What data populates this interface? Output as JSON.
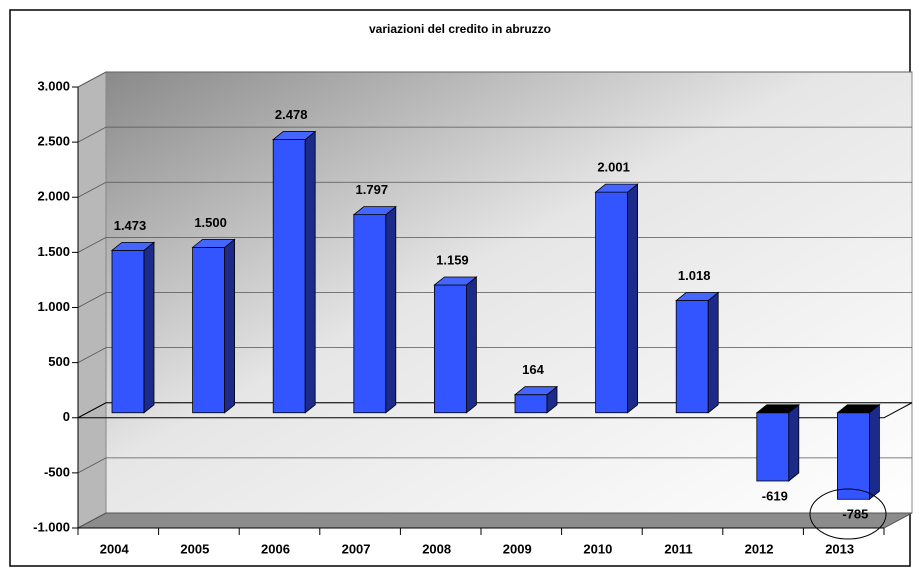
{
  "chart_data": {
    "type": "bar3d",
    "title": "variazioni del credito in abruzzo",
    "categories": [
      "2004",
      "2005",
      "2006",
      "2007",
      "2008",
      "2009",
      "2010",
      "2011",
      "2012",
      "2013"
    ],
    "values": [
      1473,
      1500,
      2478,
      1797,
      1159,
      164,
      2001,
      1018,
      -619,
      -785
    ],
    "value_labels": [
      "1.473",
      "1.500",
      "2.478",
      "1.797",
      "1.159",
      "164",
      "2.001",
      "1.018",
      "-619",
      "-785"
    ],
    "color": "#3355ff",
    "ylim": [
      -1000,
      3000
    ],
    "yticks": [
      {
        "value": -1000,
        "label": "-1.000"
      },
      -500,
      0,
      500,
      {
        "value": 1000,
        "label": "1.000"
      },
      {
        "value": 1500,
        "label": "1.500"
      },
      {
        "value": 2000,
        "label": "2.000"
      },
      {
        "value": 2500,
        "label": "2.500"
      },
      {
        "value": 3000,
        "label": "3.000"
      }
    ],
    "grid": true
  }
}
